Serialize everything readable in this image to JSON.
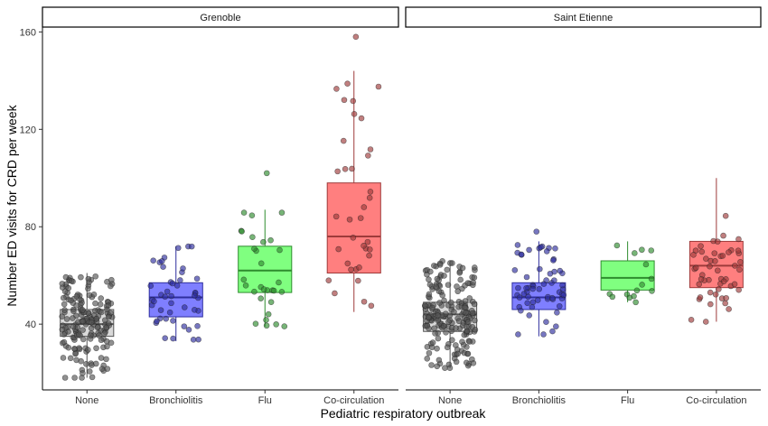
{
  "chart_data": {
    "type": "boxplot",
    "xlabel": "Pediatric respiratory outbreak",
    "ylabel": "Number ED visits for CRD per week",
    "ylim": [
      13,
      162
    ],
    "yticks": [
      40,
      80,
      120,
      160
    ],
    "categories": [
      "None",
      "Bronchiolitis",
      "Flu",
      "Co-circulation"
    ],
    "colors": {
      "None": "#d9d9d9",
      "Bronchiolitis": "#7f7fff",
      "Flu": "#80ff80",
      "Co-circulation": "#ff7f7f"
    },
    "edge_colors": {
      "None": "#555555",
      "Bronchiolitis": "#2e2e9e",
      "Flu": "#2e8c2e",
      "Co-circulation": "#9e3b3b"
    },
    "panels": [
      {
        "title": "Grenoble",
        "boxes": [
          {
            "category": "None",
            "min": 18,
            "q1": 35,
            "median": 40,
            "q3": 46,
            "max": 61,
            "n": 180
          },
          {
            "category": "Bronchiolitis",
            "min": 33,
            "q1": 43,
            "median": 51,
            "q3": 57,
            "max": 72,
            "n": 45
          },
          {
            "category": "Flu",
            "min": 39,
            "q1": 53,
            "median": 62,
            "q3": 72,
            "max": 87,
            "n": 30
          },
          {
            "category": "Co-circulation",
            "min": 45,
            "q1": 61,
            "median": 76,
            "q3": 98,
            "max": 144,
            "n": 35
          }
        ],
        "outliers": [
          {
            "category": "Flu",
            "value": 102
          },
          {
            "category": "Co-circulation",
            "value": 158
          }
        ]
      },
      {
        "title": "Saint Etienne",
        "boxes": [
          {
            "category": "None",
            "min": 22,
            "q1": 37,
            "median": 44,
            "q3": 49,
            "max": 66,
            "n": 200
          },
          {
            "category": "Bronchiolitis",
            "min": 35,
            "q1": 46,
            "median": 51,
            "q3": 57,
            "max": 74,
            "n": 60
          },
          {
            "category": "Flu",
            "min": 49,
            "q1": 54,
            "median": 59,
            "q3": 66,
            "max": 74,
            "n": 15
          },
          {
            "category": "Co-circulation",
            "min": 41,
            "q1": 55,
            "median": 64,
            "q3": 74,
            "max": 100,
            "n": 50
          }
        ],
        "outliers": [
          {
            "category": "Bronchiolitis",
            "value": 78
          }
        ]
      }
    ]
  }
}
